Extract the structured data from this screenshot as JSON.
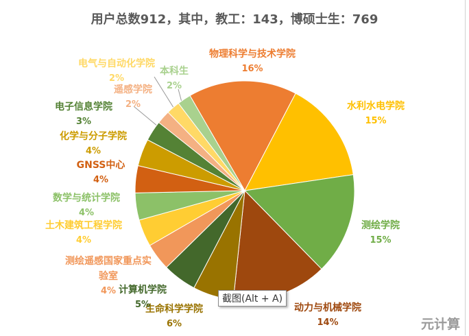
{
  "chart_data": {
    "type": "pie",
    "title": "用户总数912，其中，教工：143，博硕士生：769",
    "start_angle_deg": -30,
    "slices": [
      {
        "name": "物理科学与技术学院",
        "value": 16,
        "label": "16%",
        "color": "#ED7D31"
      },
      {
        "name": "水利水电学院",
        "value": 15,
        "label": "15%",
        "color": "#FFC000"
      },
      {
        "name": "测绘学院",
        "value": 15,
        "label": "15%",
        "color": "#70AD47"
      },
      {
        "name": "动力与机械学院",
        "value": 14,
        "label": "14%",
        "color": "#9E480E"
      },
      {
        "name": "生命科学学院",
        "value": 6,
        "label": "6%",
        "color": "#997300"
      },
      {
        "name": "计算机学院",
        "value": 5,
        "label": "5%",
        "color": "#43682B"
      },
      {
        "name": "测绘遥感国家重点实验室",
        "value": 4,
        "label": "4%",
        "color": "#F1975A"
      },
      {
        "name": "土木建筑工程学院",
        "value": 4,
        "label": "4%",
        "color": "#FFCD33"
      },
      {
        "name": "数学与统计学院",
        "value": 4,
        "label": "4%",
        "color": "#8CC168"
      },
      {
        "name": "GNSS中心",
        "value": 4,
        "label": "4%",
        "color": "#D26012"
      },
      {
        "name": "化学与分子学院",
        "value": 4,
        "label": "4%",
        "color": "#CC9C00"
      },
      {
        "name": "电子信息学院",
        "value": 3,
        "label": "3%",
        "color": "#548235"
      },
      {
        "name": "遥感学院",
        "value": 2,
        "label": "2%",
        "color": "#F4B183"
      },
      {
        "name": "电气与自动化学院",
        "value": 2,
        "label": "2%",
        "color": "#FFD966"
      },
      {
        "name": "本科生",
        "value": 2,
        "label": "2%",
        "color": "#A9D18E"
      }
    ],
    "label_colors": [
      "#ED7D31",
      "#FFC000",
      "#70AD47",
      "#9E480E",
      "#997300",
      "#43682B",
      "#F1975A",
      "#FFCD33",
      "#8CC168",
      "#D26012",
      "#CC9C00",
      "#548235",
      "#F4B183",
      "#FFD966",
      "#A9D18E"
    ]
  },
  "tooltip": "截图(Alt + A)",
  "watermark": "元计算"
}
